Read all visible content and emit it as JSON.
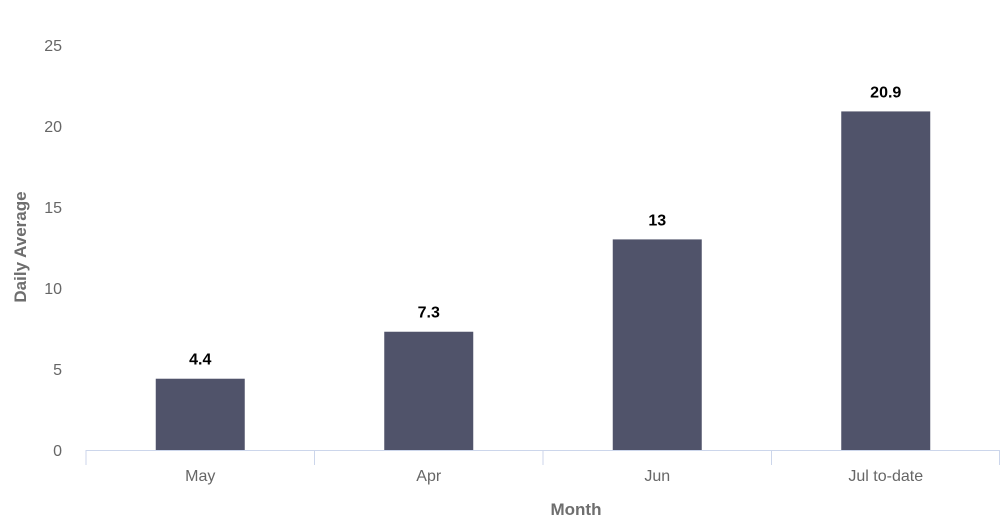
{
  "chart_data": {
    "type": "bar",
    "categories": [
      "May",
      "Apr",
      "Jun",
      "Jul to-date"
    ],
    "values": [
      4.4,
      7.3,
      13,
      20.9
    ],
    "data_labels": [
      "4.4",
      "7.3",
      "13",
      "20.9"
    ],
    "title": "",
    "xlabel": "Month",
    "ylabel": "Daily Average",
    "ylim": [
      0,
      25
    ],
    "yticks": [
      0,
      5,
      10,
      15,
      20,
      25
    ],
    "grid": false,
    "legend": "none",
    "bar_color": "#50536a",
    "axis_color": "#ccd6eb"
  }
}
